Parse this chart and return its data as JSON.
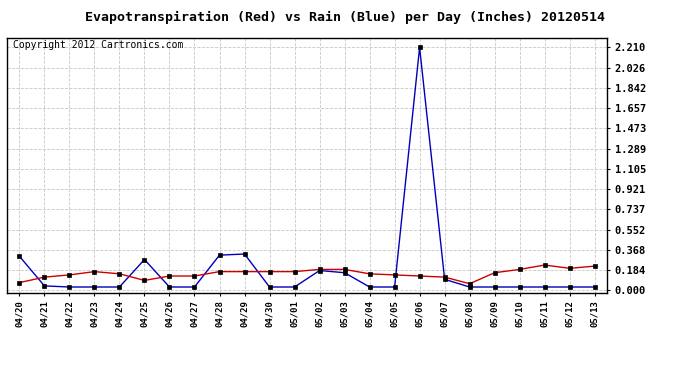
{
  "title": "Evapotranspiration (Red) vs Rain (Blue) per Day (Inches) 20120514",
  "copyright": "Copyright 2012 Cartronics.com",
  "labels": [
    "04/20",
    "04/21",
    "04/22",
    "04/23",
    "04/24",
    "04/25",
    "04/26",
    "04/27",
    "04/28",
    "04/29",
    "04/30",
    "05/01",
    "05/02",
    "05/03",
    "05/04",
    "05/05",
    "05/06",
    "05/07",
    "05/08",
    "05/09",
    "05/10",
    "05/11",
    "05/12",
    "05/13"
  ],
  "rain_blue": [
    0.31,
    0.04,
    0.03,
    0.03,
    0.03,
    0.28,
    0.03,
    0.03,
    0.32,
    0.33,
    0.03,
    0.03,
    0.18,
    0.16,
    0.03,
    0.03,
    2.21,
    0.1,
    0.03,
    0.03,
    0.03,
    0.03,
    0.03,
    0.03
  ],
  "et_red": [
    0.07,
    0.12,
    0.14,
    0.17,
    0.15,
    0.09,
    0.13,
    0.13,
    0.17,
    0.17,
    0.17,
    0.17,
    0.19,
    0.19,
    0.15,
    0.14,
    0.13,
    0.12,
    0.06,
    0.16,
    0.19,
    0.23,
    0.2,
    0.22
  ],
  "yticks": [
    0.0,
    0.184,
    0.368,
    0.552,
    0.737,
    0.921,
    1.105,
    1.289,
    1.473,
    1.657,
    1.842,
    2.026,
    2.21
  ],
  "ymax": 2.3,
  "ymin": -0.02,
  "bg_color": "#ffffff",
  "plot_bg": "#ffffff",
  "grid_color": "#c8c8c8",
  "blue_color": "#0000bb",
  "red_color": "#cc0000",
  "title_fontsize": 9.5,
  "copyright_fontsize": 7
}
